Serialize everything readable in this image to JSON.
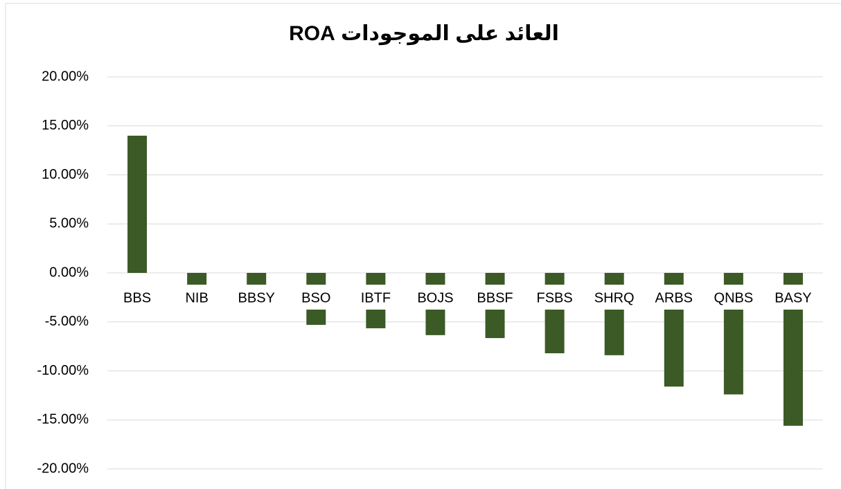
{
  "chart_data": {
    "type": "bar",
    "title": "العائد على الموجودات ROA",
    "categories": [
      "BBS",
      "NIB",
      "BBSY",
      "BSO",
      "IBTF",
      "BOJS",
      "BBSF",
      "FSBS",
      "SHRQ",
      "ARBS",
      "QNBS",
      "BASY"
    ],
    "values": [
      14.0,
      -2.0,
      -2.5,
      -5.3,
      -5.65,
      -6.35,
      -6.65,
      -8.2,
      -8.4,
      -11.6,
      -12.4,
      -15.6
    ],
    "color": "#3b5a26",
    "ylim": [
      -20,
      20
    ],
    "yticks": [
      {
        "value": -20,
        "label": "-20.00%"
      },
      {
        "value": -15,
        "label": "-15.00%"
      },
      {
        "value": -10,
        "label": "-10.00%"
      },
      {
        "value": -5,
        "label": "-5.00%"
      },
      {
        "value": 0,
        "label": "0.00%"
      },
      {
        "value": 5,
        "label": "5.00%"
      },
      {
        "value": 10,
        "label": "10.00%"
      },
      {
        "value": 15,
        "label": "15.00%"
      },
      {
        "value": 20,
        "label": "20.00%"
      }
    ],
    "grid": true
  }
}
